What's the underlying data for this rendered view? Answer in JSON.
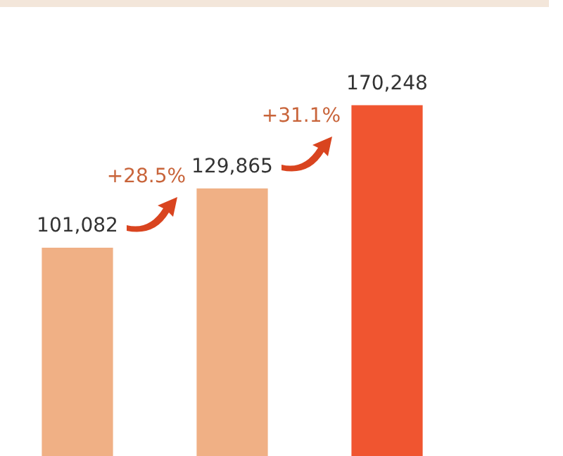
{
  "chart_data": {
    "type": "bar",
    "categories": [
      null,
      null,
      null
    ],
    "values": [
      101082,
      129865,
      170248
    ],
    "value_labels": [
      "101,082",
      "129,865",
      "170,248"
    ],
    "colors": [
      "#f0b085",
      "#f0b085",
      "#f05530"
    ],
    "tick_labels": false,
    "annotations": [
      "+28.5%",
      "+31.1%"
    ]
  }
}
